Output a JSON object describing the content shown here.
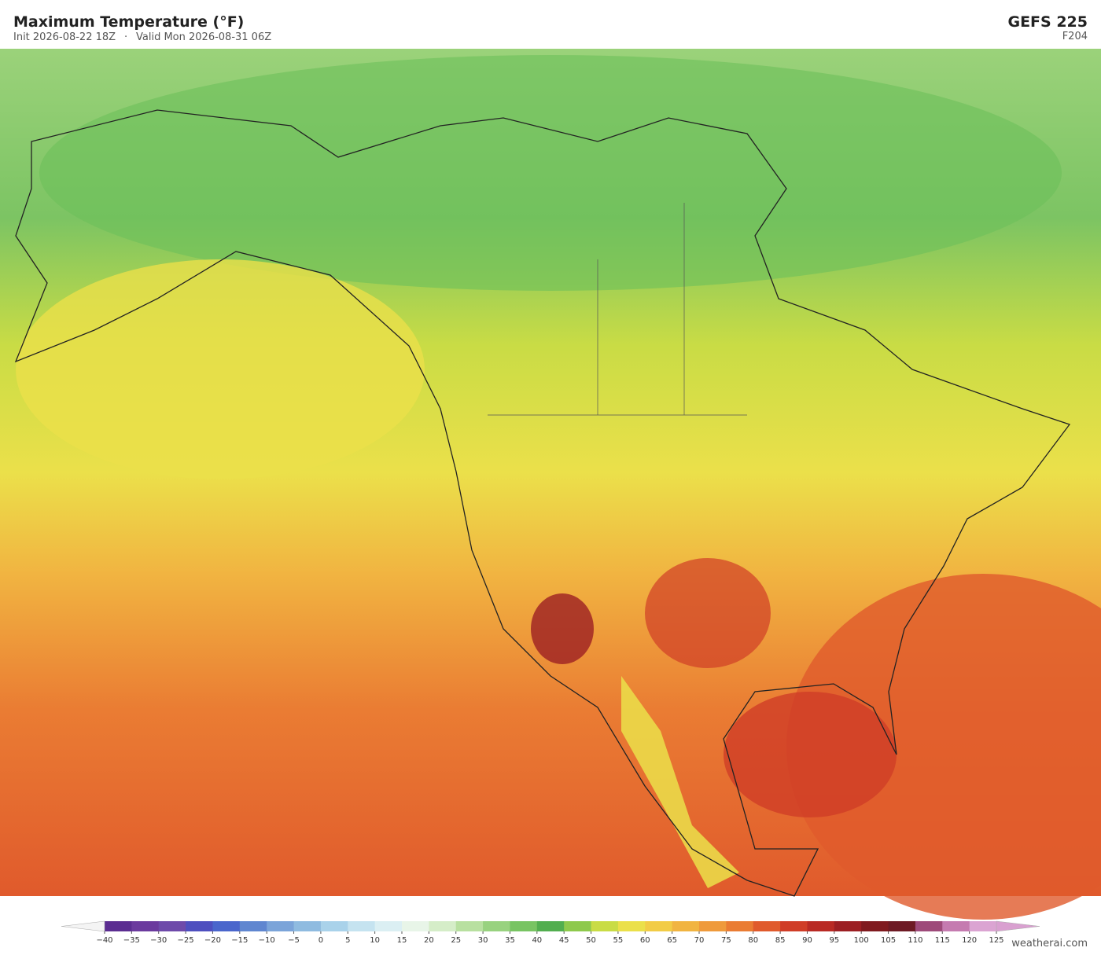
{
  "header": {
    "title": "Maximum Temperature  (°F)",
    "init": "Init 2026-08-22 18Z",
    "separator": "·",
    "valid": "Valid Mon 2026-08-31 06Z",
    "model": "GEFS  225",
    "forecast_hour": "F204"
  },
  "colorbar": {
    "ticks": [
      {
        "value": -40,
        "label": "−40"
      },
      {
        "value": -35,
        "label": "−35"
      },
      {
        "value": -30,
        "label": "−30"
      },
      {
        "value": -25,
        "label": "−25"
      },
      {
        "value": -20,
        "label": "−20"
      },
      {
        "value": -15,
        "label": "−15"
      },
      {
        "value": -10,
        "label": "−10"
      },
      {
        "value": -5,
        "label": "−5"
      },
      0,
      5,
      10,
      15,
      20,
      25,
      30,
      35,
      40,
      45,
      50,
      55,
      60,
      65,
      70,
      75,
      80,
      85,
      90,
      95,
      100,
      105,
      110,
      115,
      120,
      125
    ],
    "colors": [
      "#5b2d91",
      "#6b3a9e",
      "#6e4aaa",
      "#4e4fbf",
      "#4a66cc",
      "#5f86d0",
      "#7ba4d9",
      "#8fbbe0",
      "#a9d2ea",
      "#c5e3f0",
      "#dbeff3",
      "#e8f5e8",
      "#d5edc8",
      "#b8e0a0",
      "#98d27f",
      "#78c462",
      "#52ae4f",
      "#8ec94c",
      "#c9dc45",
      "#ebe04a",
      "#f2cc46",
      "#f1b441",
      "#ef9a3b",
      "#ea7c33",
      "#e05a2c",
      "#d03d27",
      "#b92a24",
      "#9c1f23",
      "#801a1f",
      "#6e1a24",
      "#9e4a7a",
      "#c57bb0",
      "#dba4d2"
    ],
    "under_color": "#f4f4f4",
    "over_color": "#d9a0d0"
  },
  "credit": "weatherai.com"
}
